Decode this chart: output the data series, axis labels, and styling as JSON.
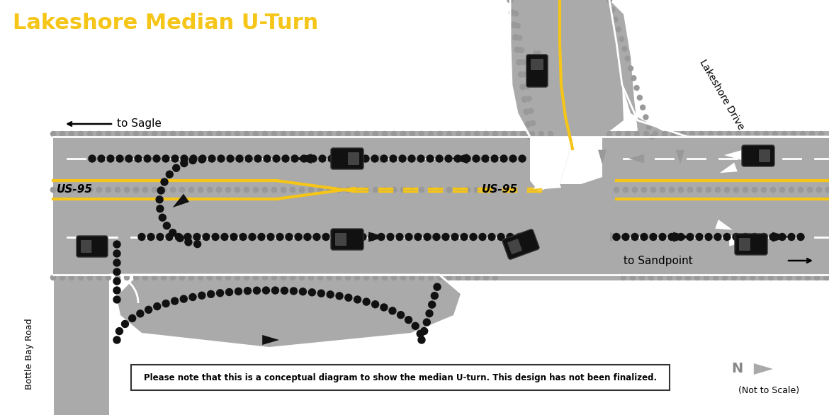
{
  "title": "Lakeshore Median U-Turn",
  "title_color": "#F5C518",
  "title_fontsize": 22,
  "bg_color": "#FFFFFF",
  "road_color": "#AAAAAA",
  "road_light": "#BBBBBB",
  "road_edge_color": "#888888",
  "road_dark": "#999999",
  "median_yellow": "#F5C518",
  "white_line": "#FFFFFF",
  "dot_black": "#111111",
  "dot_gray": "#AAAAAA",
  "arrow_gray": "#999999",
  "car_color": "#111111",
  "disclaimer_text": "Please note that this is a conceptual diagram to show the median U-turn. This design has not been finalized.",
  "label_sagle": "to Sagle",
  "label_sandpoint": "to Sandpoint",
  "label_us95_left": "US-95",
  "label_us95_right": "US-95",
  "label_lakeshore": "Lakeshore Drive",
  "label_bottle_bay": "Bottle Bay Road",
  "label_not_to_scale": "(Not to Scale)"
}
